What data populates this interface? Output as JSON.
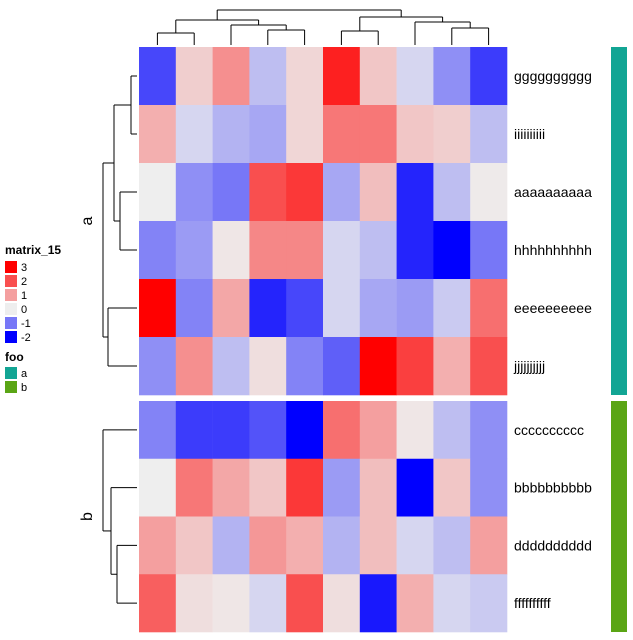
{
  "chart_data": {
    "type": "heatmap",
    "rows": [
      "gggggggggg",
      "iiiiiiiiii",
      "aaaaaaaaaa",
      "hhhhhhhhhh",
      "eeeeeeeeee",
      "jjjjjjjjjj",
      "cccccccccc",
      "bbbbbbbbbb",
      "dddddddddd",
      "ffffffffff"
    ],
    "n_columns": 10,
    "values": [
      [
        -1.4,
        0.4,
        1.2,
        -0.4,
        0.3,
        2.6,
        0.5,
        -0.2,
        -0.8,
        -1.5
      ],
      [
        0.8,
        -0.2,
        -0.5,
        -0.6,
        0.3,
        1.5,
        1.5,
        0.5,
        0.4,
        -0.4
      ],
      [
        0.0,
        -0.8,
        -1.0,
        2.0,
        2.3,
        -0.6,
        0.6,
        -1.7,
        -0.4,
        0.05
      ],
      [
        -0.9,
        -0.7,
        0.1,
        1.3,
        1.3,
        -0.2,
        -0.4,
        -1.7,
        -2.0,
        -1.0
      ],
      [
        3.0,
        -0.9,
        0.9,
        -1.7,
        -1.4,
        -0.2,
        -0.6,
        -0.7,
        -0.3,
        1.6
      ],
      [
        -0.8,
        1.2,
        -0.4,
        0.2,
        -0.9,
        -1.2,
        3.0,
        2.2,
        0.8,
        2.0
      ],
      [
        -0.9,
        -1.5,
        -1.5,
        -1.3,
        -2.2,
        1.6,
        1.0,
        0.1,
        -0.4,
        -0.8
      ],
      [
        0.0,
        1.5,
        0.9,
        0.5,
        2.3,
        -0.7,
        0.6,
        -2.0,
        0.5,
        -0.8
      ],
      [
        1.0,
        0.5,
        -0.5,
        1.1,
        0.8,
        -0.5,
        0.6,
        -0.2,
        -0.4,
        1.0
      ],
      [
        1.8,
        0.2,
        0.1,
        -0.2,
        2.0,
        0.2,
        -1.8,
        0.8,
        -0.2,
        -0.3
      ]
    ],
    "row_split": {
      "title": "",
      "groups": [
        {
          "label": "a",
          "rows": [
            0,
            1,
            2,
            3,
            4,
            5
          ]
        },
        {
          "label": "b",
          "rows": [
            6,
            7,
            8,
            9
          ]
        }
      ]
    },
    "annotation": {
      "name": "foo",
      "values": [
        "a",
        "a",
        "a",
        "a",
        "a",
        "a",
        "b",
        "b",
        "b",
        "b"
      ],
      "levels": [
        {
          "label": "a",
          "color": "#12A594"
        },
        {
          "label": "b",
          "color": "#5AA515"
        }
      ]
    },
    "color_legend": {
      "title": "matrix_15",
      "breaks": [
        3,
        2,
        1,
        0,
        -1,
        -2
      ],
      "labels": [
        "3",
        "2",
        "1",
        "0",
        "-1",
        "-2"
      ],
      "color_stops": [
        {
          "value": -2,
          "color": "#0000FF"
        },
        {
          "value": 0,
          "color": "#EEEEEE"
        },
        {
          "value": 3,
          "color": "#FF0000"
        }
      ]
    },
    "column_dendrogram": true,
    "row_dendrogram": true
  }
}
